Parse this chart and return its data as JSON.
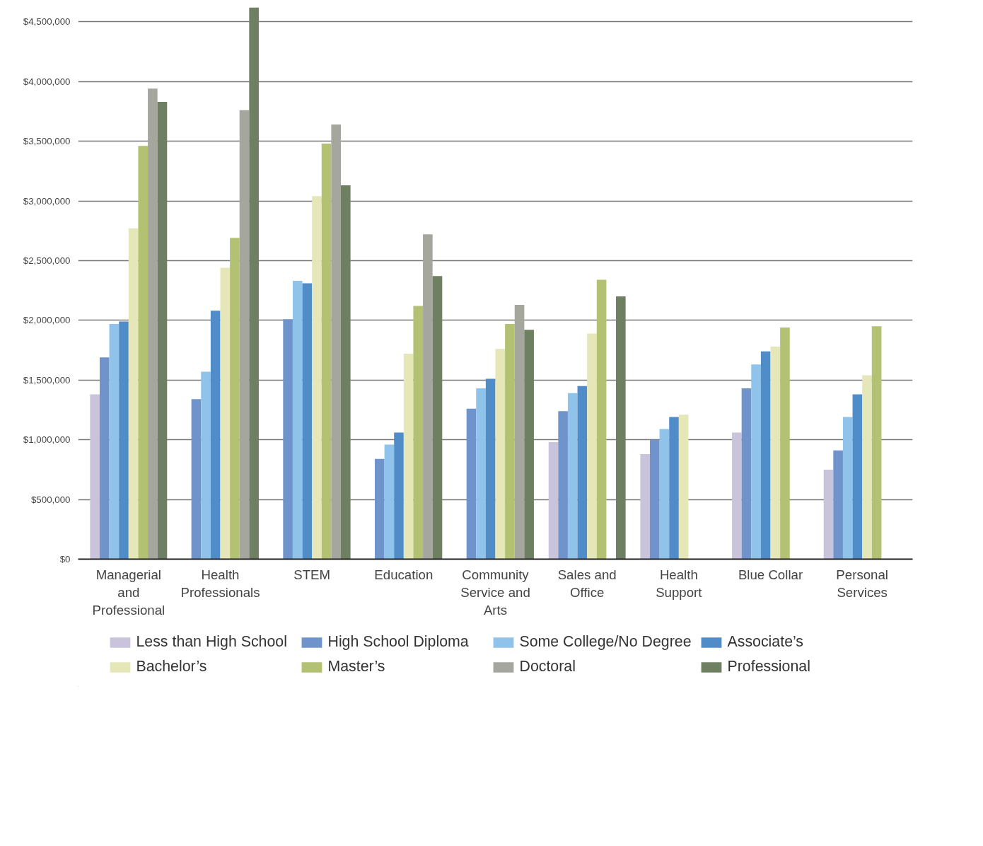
{
  "chart_data": {
    "type": "bar",
    "categories": [
      "Managerial and Professional",
      "Health Professionals",
      "STEM",
      "Education",
      "Community Service and Arts",
      "Sales and Office",
      "Health Support",
      "Blue Collar",
      "Personal Services"
    ],
    "series": [
      {
        "name": "Less than High School",
        "color": "#c9c3dc",
        "values": [
          1380000,
          null,
          null,
          null,
          null,
          980000,
          880000,
          1060000,
          750000
        ]
      },
      {
        "name": "High School Diploma",
        "color": "#6f94cc",
        "values": [
          1690000,
          1340000,
          2010000,
          840000,
          1260000,
          1240000,
          1000000,
          1430000,
          910000
        ]
      },
      {
        "name": "Some College/No Degree",
        "color": "#8fc3ea",
        "values": [
          1970000,
          1570000,
          2330000,
          960000,
          1430000,
          1390000,
          1090000,
          1630000,
          1190000
        ]
      },
      {
        "name": "Associate’s",
        "color": "#4f8cc8",
        "values": [
          1990000,
          2080000,
          2310000,
          1060000,
          1510000,
          1450000,
          1190000,
          1740000,
          1380000
        ]
      },
      {
        "name": "Bachelor’s",
        "color": "#e6e7b8",
        "values": [
          2770000,
          2440000,
          3040000,
          1720000,
          1760000,
          1890000,
          1210000,
          1780000,
          1540000
        ]
      },
      {
        "name": "Master’s",
        "color": "#b3c172",
        "values": [
          3460000,
          2690000,
          3480000,
          2120000,
          1970000,
          2340000,
          null,
          1940000,
          1950000
        ]
      },
      {
        "name": "Doctoral",
        "color": "#a5a79e",
        "values": [
          3940000,
          3760000,
          3640000,
          2720000,
          2130000,
          null,
          null,
          null,
          null
        ]
      },
      {
        "name": "Professional",
        "color": "#6f7f62",
        "values": [
          3830000,
          4620000,
          3130000,
          2370000,
          1920000,
          2200000,
          null,
          null,
          null
        ]
      }
    ],
    "ylim": [
      0,
      4620000
    ],
    "yticks": [
      {
        "value": 0,
        "label": "$0"
      },
      {
        "value": 500000,
        "label": "$500,000"
      },
      {
        "value": 1000000,
        "label": "$1,000,000"
      },
      {
        "value": 1500000,
        "label": "$1,500,000"
      },
      {
        "value": 2000000,
        "label": "$2,000,000"
      },
      {
        "value": 2500000,
        "label": "$2,500,000"
      },
      {
        "value": 3000000,
        "label": "$3,000,000"
      },
      {
        "value": 3500000,
        "label": "$3,500,000"
      },
      {
        "value": 4000000,
        "label": "$4,000,000"
      },
      {
        "value": 4500000,
        "label": "$4,500,000"
      }
    ],
    "grid": "y",
    "legend": "bottom"
  }
}
